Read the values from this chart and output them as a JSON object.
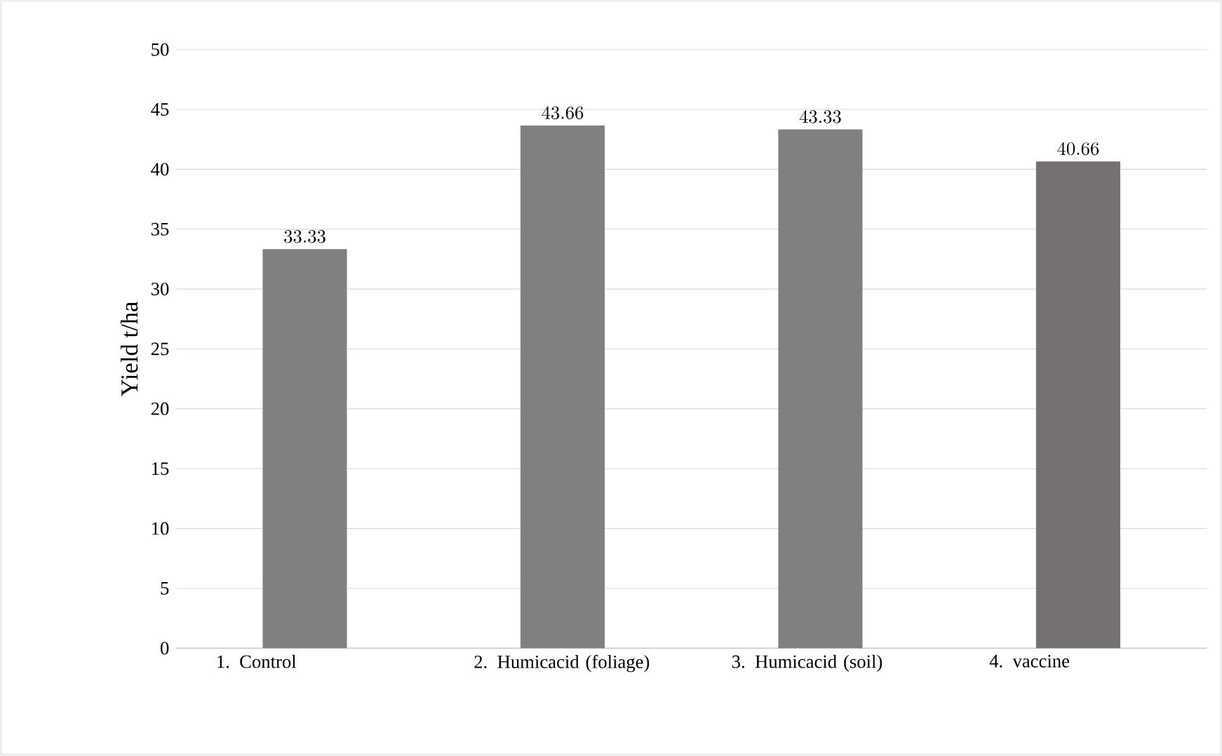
{
  "chart_data": {
    "type": "bar",
    "ylabel": "Yield   t/ha",
    "categories": [
      "1.      Control",
      "2.     Humicacid (foliage)",
      "3.     Humicacid (soil)",
      "4.      vaccine"
    ],
    "values": [
      33.33,
      43.66,
      43.33,
      40.66
    ],
    "colors": [
      "#808080",
      "#808080",
      "#808080",
      "#767171"
    ],
    "ylim": [
      0,
      50
    ],
    "yticks": [
      0,
      5,
      10,
      15,
      20,
      25,
      30,
      35,
      40,
      45,
      50
    ],
    "grid": "y",
    "data_labels": true
  }
}
